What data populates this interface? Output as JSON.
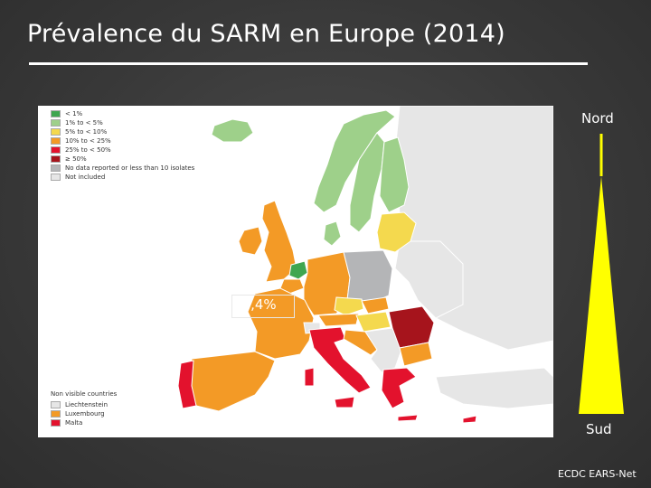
{
  "title": "Prévalence du SARM en Europe (2014)",
  "map": {
    "legend": [
      {
        "label": "< 1%",
        "color": "#3fa650"
      },
      {
        "label": "1% to < 5%",
        "color": "#9ed08a"
      },
      {
        "label": "5% to < 10%",
        "color": "#f4d94e"
      },
      {
        "label": "10% to < 25%",
        "color": "#f39a26"
      },
      {
        "label": "25% to < 50%",
        "color": "#e3122d"
      },
      {
        "label": "≥ 50%",
        "color": "#a6141c"
      },
      {
        "label": "No data reported or less than 10 isolates",
        "color": "#b4b5b7"
      },
      {
        "label": "Not included",
        "color": "#e6e6e6"
      }
    ],
    "non_visible": {
      "heading": "Non visible countries",
      "items": [
        {
          "label": "Liechtenstein",
          "color": "#e6e6e6"
        },
        {
          "label": "Luxembourg",
          "color": "#f39a26"
        },
        {
          "label": "Malta",
          "color": "#e3122d"
        }
      ]
    },
    "highlight_value": "17,4%"
  },
  "gradient": {
    "top_label": "Nord",
    "bottom_label": "Sud",
    "color": "#ffff00"
  },
  "source": "ECDC EARS-Net"
}
